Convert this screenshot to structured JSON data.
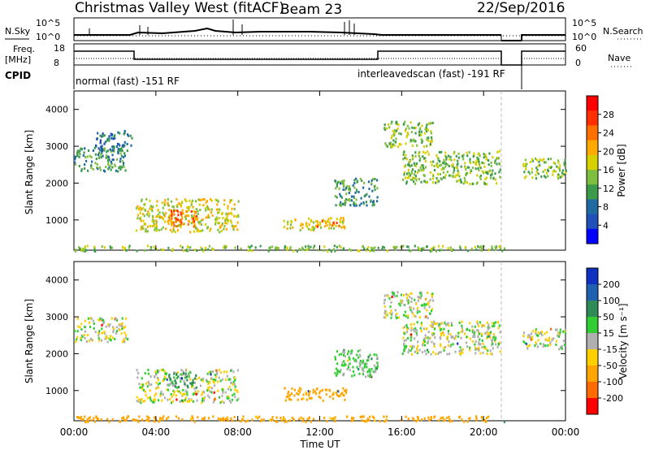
{
  "header": {
    "station": "Christmas Valley West (fitACF)",
    "beam": "Beam 23",
    "date": "22/Sep/2016"
  },
  "panels": {
    "nsky_label": "N.Sky",
    "nsearch_label": "N.Search",
    "freq_label_line1": "Freq.",
    "freq_label_line2": "[MHz]",
    "nave_label": "Nave",
    "cpid_label": "CPID",
    "nsky_ticks": [
      "10^5",
      "10^0"
    ],
    "nsearch_ticks": [
      "10^5",
      "10^0"
    ],
    "freq_ticks": [
      "18",
      "8"
    ],
    "nave_ticks": [
      "60",
      "0"
    ],
    "cpid_normal": "normal (fast) -151 RF",
    "cpid_interleaved": "interleavedscan (fast) -191 RF"
  },
  "chart_data": [
    {
      "type": "heatmap",
      "title": "Power",
      "ylabel": "Slant Range [km]",
      "ylim": [
        180,
        4500
      ],
      "yticks": [
        "1000",
        "2000",
        "3000",
        "4000"
      ],
      "x_ticks": [
        "00:00",
        "04:00",
        "08:00",
        "12:00",
        "16:00",
        "20:00",
        "00:00"
      ],
      "colorbar_label": "Power [dB]",
      "colorbar_ticks": [
        "4",
        "8",
        "12",
        "16",
        "20",
        "24",
        "28"
      ],
      "colorbar_colors": [
        "#0000ff",
        "#2050b8",
        "#1f6aa0",
        "#3b9b4b",
        "#7fbf3f",
        "#d6d000",
        "#ffaa00",
        "#ff7000",
        "#ff3000",
        "#ff0000"
      ],
      "regions": [
        {
          "t0": 0.0,
          "t1": 2.6,
          "r0": 2350,
          "r1": 3000,
          "level": 3
        },
        {
          "t0": 1.0,
          "t1": 2.8,
          "r0": 2900,
          "r1": 3450,
          "level": 2
        },
        {
          "t0": 3.0,
          "t1": 8.0,
          "r0": 700,
          "r1": 1600,
          "level": 5
        },
        {
          "t0": 4.6,
          "t1": 6.0,
          "r0": 850,
          "r1": 1300,
          "level": 7
        },
        {
          "t0": 10.2,
          "t1": 13.3,
          "r0": 750,
          "r1": 1100,
          "level": 5
        },
        {
          "t0": 11.8,
          "t1": 12.9,
          "r0": 850,
          "r1": 1000,
          "level": 7
        },
        {
          "t0": 12.7,
          "t1": 14.8,
          "r0": 1400,
          "r1": 2150,
          "level": 3
        },
        {
          "t0": 15.1,
          "t1": 17.5,
          "r0": 3000,
          "r1": 3700,
          "level": 4
        },
        {
          "t0": 16.0,
          "t1": 20.8,
          "r0": 2000,
          "r1": 2900,
          "level": 4
        },
        {
          "t0": 21.9,
          "t1": 24.0,
          "r0": 2150,
          "r1": 2700,
          "level": 4
        },
        {
          "t0": 0.0,
          "t1": 21.0,
          "r0": 180,
          "r1": 330,
          "level": 4
        }
      ]
    },
    {
      "type": "heatmap",
      "title": "Velocity",
      "ylabel": "Slant Range [km]",
      "xlabel": "Time UT",
      "ylim": [
        180,
        4500
      ],
      "yticks": [
        "1000",
        "2000",
        "3000",
        "4000"
      ],
      "x_ticks": [
        "00:00",
        "04:00",
        "08:00",
        "12:00",
        "16:00",
        "20:00",
        "00:00"
      ],
      "colorbar_label": "Velocity [m s⁻¹]",
      "colorbar_ticks": [
        "200",
        "100",
        "50",
        "15",
        "-15",
        "-50",
        "-100",
        "-200"
      ],
      "colorbar_colors": [
        "#1030c0",
        "#2060b0",
        "#2e8b57",
        "#32cd32",
        "#b0b0b0",
        "#ffd000",
        "#ffa500",
        "#ff6a00",
        "#ff0000"
      ],
      "regions": [
        {
          "t0": 0.0,
          "t1": 2.6,
          "r0": 2350,
          "r1": 3000,
          "vel": 0
        },
        {
          "t0": 3.0,
          "t1": 8.0,
          "r0": 700,
          "r1": 1600,
          "vel": 0
        },
        {
          "t0": 4.6,
          "t1": 6.0,
          "r0": 1100,
          "r1": 1500,
          "vel": 50
        },
        {
          "t0": 10.2,
          "t1": 13.3,
          "r0": 750,
          "r1": 1100,
          "vel": -50
        },
        {
          "t0": 12.7,
          "t1": 14.8,
          "r0": 1400,
          "r1": 2150,
          "vel": 15
        },
        {
          "t0": 15.1,
          "t1": 17.5,
          "r0": 3000,
          "r1": 3700,
          "vel": 0
        },
        {
          "t0": 16.0,
          "t1": 20.8,
          "r0": 2000,
          "r1": 2900,
          "vel": 0
        },
        {
          "t0": 21.9,
          "t1": 24.0,
          "r0": 2150,
          "r1": 2700,
          "vel": 0
        },
        {
          "t0": 0.0,
          "t1": 21.0,
          "r0": 180,
          "r1": 330,
          "vel": -50
        }
      ]
    }
  ]
}
